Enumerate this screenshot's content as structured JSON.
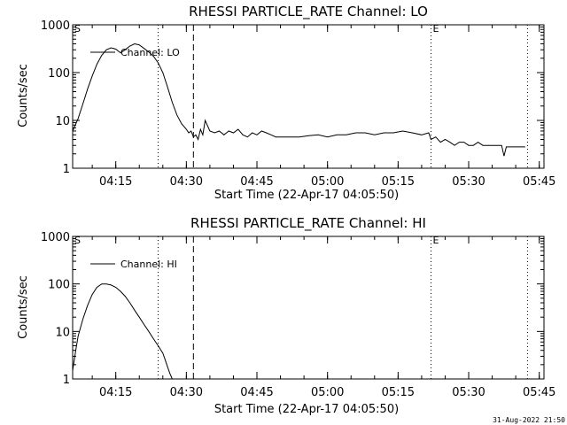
{
  "stamp": "31-Aug-2022 21:50",
  "chart_data": [
    {
      "type": "line",
      "title": "RHESSI PARTICLE_RATE Channel: LO",
      "xlabel": "Start Time (22-Apr-17 04:05:50)",
      "ylabel": "Counts/sec",
      "yscale": "log",
      "xlim": [
        "04:05:50",
        "05:46:00"
      ],
      "ylim": [
        1,
        1000
      ],
      "xtick_labels": [
        "04:15",
        "04:30",
        "04:45",
        "05:00",
        "05:15",
        "05:30",
        "05:45"
      ],
      "ytick_labels": [
        "1",
        "10",
        "100",
        "1000"
      ],
      "markers": [
        {
          "label": "S",
          "time": "04:05:50",
          "style": "solid"
        },
        {
          "label": "",
          "time": "04:24:00",
          "style": "dotted"
        },
        {
          "label": "",
          "time": "04:31:30",
          "style": "dashed"
        },
        {
          "label": "E",
          "time": "05:22:00",
          "style": "dotted"
        },
        {
          "label": "",
          "time": "05:42:30",
          "style": "dotted"
        }
      ],
      "legend": "top-left",
      "series": [
        {
          "name": "Channel: LO",
          "x": [
            "04:05:50",
            "04:07:00",
            "04:08:00",
            "04:09:00",
            "04:10:00",
            "04:11:00",
            "04:12:00",
            "04:13:00",
            "04:14:00",
            "04:15:00",
            "04:16:00",
            "04:17:00",
            "04:18:00",
            "04:19:00",
            "04:20:00",
            "04:21:00",
            "04:22:00",
            "04:23:00",
            "04:24:00",
            "04:25:00",
            "04:26:00",
            "04:27:00",
            "04:28:00",
            "04:29:00",
            "04:30:00",
            "04:30:30",
            "04:31:00",
            "04:31:30",
            "04:32:00",
            "04:32:30",
            "04:33:00",
            "04:33:30",
            "04:34:00",
            "04:35:00",
            "04:36:00",
            "04:37:00",
            "04:38:00",
            "04:39:00",
            "04:40:00",
            "04:41:00",
            "04:42:00",
            "04:43:00",
            "04:44:00",
            "04:45:00",
            "04:46:00",
            "04:47:00",
            "04:48:00",
            "04:49:00",
            "04:50:00",
            "04:52:00",
            "04:54:00",
            "04:56:00",
            "04:58:00",
            "05:00:00",
            "05:02:00",
            "05:04:00",
            "05:06:00",
            "05:08:00",
            "05:10:00",
            "05:12:00",
            "05:14:00",
            "05:16:00",
            "05:18:00",
            "05:20:00",
            "05:21:30",
            "05:22:00",
            "05:23:00",
            "05:24:00",
            "05:25:00",
            "05:26:00",
            "05:27:00",
            "05:28:00",
            "05:29:00",
            "05:30:00",
            "05:31:00",
            "05:32:00",
            "05:33:00",
            "05:34:00",
            "05:35:00",
            "05:36:00",
            "05:37:00",
            "05:37:30",
            "05:38:00",
            "05:39:00",
            "05:40:00",
            "05:41:00",
            "05:42:00"
          ],
          "y": [
            6,
            11,
            22,
            45,
            85,
            150,
            230,
            300,
            330,
            310,
            260,
            300,
            360,
            400,
            380,
            320,
            270,
            220,
            160,
            100,
            50,
            24,
            13,
            8.5,
            6.5,
            5.5,
            6,
            4.5,
            5,
            4,
            6.5,
            5,
            10,
            6,
            5.5,
            6,
            5,
            6,
            5.5,
            6.5,
            5,
            4.5,
            5.5,
            5,
            6,
            5.5,
            5,
            4.5,
            4.5,
            4.5,
            4.5,
            4.8,
            5,
            4.5,
            5,
            5,
            5.5,
            5.5,
            5,
            5.5,
            5.5,
            6,
            5.5,
            5,
            5.5,
            4,
            4.5,
            3.5,
            4,
            3.5,
            3,
            3.5,
            3.5,
            3,
            3,
            3.5,
            3,
            3,
            3,
            3,
            3,
            1.8,
            2.8,
            2.8,
            2.8,
            2.8,
            2.8
          ]
        }
      ]
    },
    {
      "type": "line",
      "title": "RHESSI PARTICLE_RATE Channel: HI",
      "xlabel": "Start Time (22-Apr-17 04:05:50)",
      "ylabel": "Counts/sec",
      "yscale": "log",
      "xlim": [
        "04:05:50",
        "05:46:00"
      ],
      "ylim": [
        1,
        1000
      ],
      "xtick_labels": [
        "04:15",
        "04:30",
        "04:45",
        "05:00",
        "05:15",
        "05:30",
        "05:45"
      ],
      "ytick_labels": [
        "1",
        "10",
        "100",
        "1000"
      ],
      "markers": [
        {
          "label": "S",
          "time": "04:05:50",
          "style": "solid"
        },
        {
          "label": "",
          "time": "04:24:00",
          "style": "dotted"
        },
        {
          "label": "",
          "time": "04:31:30",
          "style": "dashed"
        },
        {
          "label": "E",
          "time": "05:22:00",
          "style": "dotted"
        },
        {
          "label": "",
          "time": "05:42:30",
          "style": "dotted"
        }
      ],
      "legend": "top-left",
      "series": [
        {
          "name": "Channel: HI",
          "x": [
            "04:05:50",
            "04:06:30",
            "04:07:00",
            "04:08:00",
            "04:09:00",
            "04:10:00",
            "04:11:00",
            "04:12:00",
            "04:13:00",
            "04:14:00",
            "04:15:00",
            "04:16:00",
            "04:17:00",
            "04:18:00",
            "04:19:00",
            "04:20:00",
            "04:21:00",
            "04:22:00",
            "04:23:00",
            "04:24:00",
            "04:25:00",
            "04:25:30",
            "04:26:00",
            "04:26:30",
            "04:27:00"
          ],
          "y": [
            1.5,
            4,
            8,
            18,
            35,
            60,
            85,
            100,
            100,
            95,
            85,
            70,
            55,
            40,
            28,
            20,
            14,
            10,
            7,
            5,
            3.5,
            2.5,
            1.8,
            1.3,
            1
          ]
        }
      ]
    }
  ]
}
